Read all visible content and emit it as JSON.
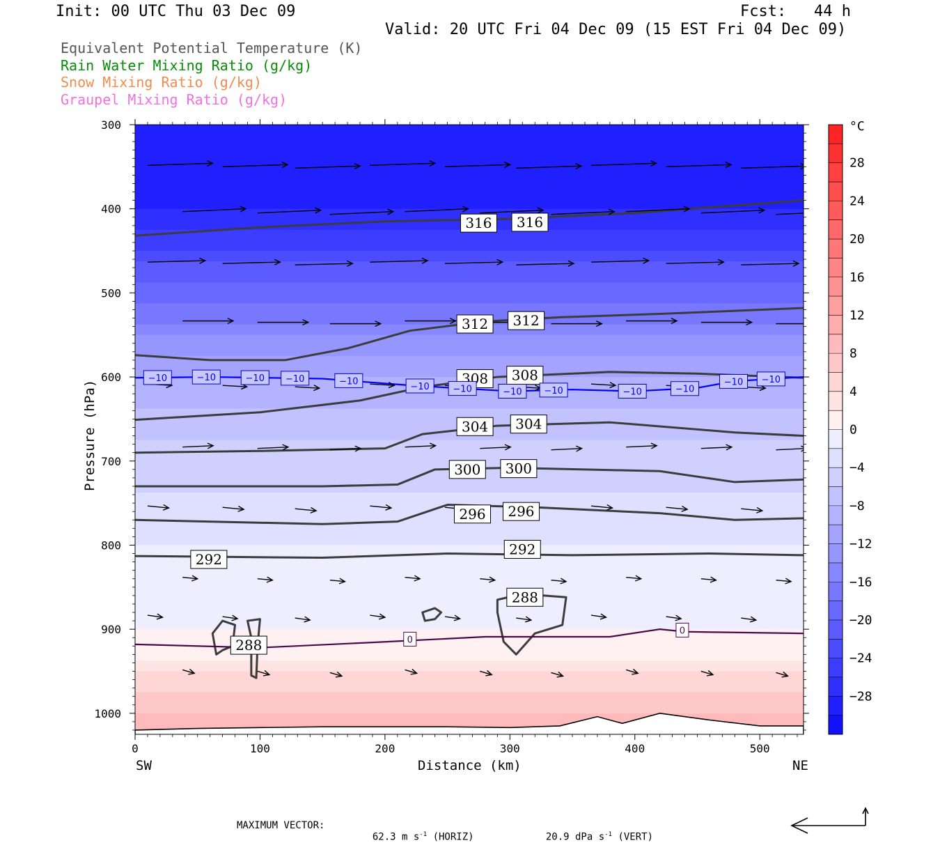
{
  "header": {
    "init": "Init: 00 UTC Thu 03 Dec 09",
    "fcst": "Fcst:   44 h",
    "valid": "Valid: 20 UTC Fri 04 Dec 09 (15 EST Fri 04 Dec 09)"
  },
  "legend": [
    {
      "label": "Equivalent Potential Temperature (K)",
      "color": "#555555"
    },
    {
      "label": "Rain Water Mixing Ratio (g/kg)",
      "color": "#0a8a0a"
    },
    {
      "label": "Snow Mixing Ratio (g/kg)",
      "color": "#f08c50"
    },
    {
      "label": "Graupel Mixing Ratio (g/kg)",
      "color": "#f070e6"
    }
  ],
  "chart_data": {
    "type": "heatmap",
    "xlabel": "Distance (km)",
    "ylabel": "Pressure (hPa)",
    "xlim": [
      0,
      535
    ],
    "ylim": [
      1025,
      300
    ],
    "y_scale": "linear, inverted",
    "x_ticks": [
      "0",
      "100",
      "200",
      "300",
      "400",
      "500"
    ],
    "y_ticks": [
      "300",
      "400",
      "500",
      "600",
      "700",
      "800",
      "900",
      "1000"
    ],
    "x_endpoints": {
      "left": "SW",
      "right": "NE"
    },
    "colorbar": {
      "unit": "°C",
      "labels": [
        "28",
        "24",
        "20",
        "16",
        "12",
        "8",
        "4",
        "0",
        "−4",
        "−8",
        "−12",
        "−16",
        "−20",
        "−24",
        "−28"
      ],
      "range": [
        -32,
        32
      ],
      "step": 2
    },
    "temperature_profile": {
      "pressure_hPa": [
        300,
        400,
        500,
        600,
        700,
        800,
        900,
        920,
        1000,
        1025
      ],
      "temperature_C": [
        -30,
        -28,
        -19,
        -10,
        -5,
        -2,
        0,
        1,
        8,
        9
      ]
    },
    "theta_e_contours": [
      {
        "level": "316",
        "points": [
          [
            0,
            432
          ],
          [
            100,
            422
          ],
          [
            200,
            415
          ],
          [
            300,
            412
          ],
          [
            400,
            405
          ],
          [
            535,
            390
          ]
        ]
      },
      {
        "level": "312",
        "points": [
          [
            0,
            574
          ],
          [
            60,
            580
          ],
          [
            120,
            580
          ],
          [
            170,
            566
          ],
          [
            220,
            545
          ],
          [
            280,
            534
          ],
          [
            340,
            529
          ],
          [
            420,
            525
          ],
          [
            535,
            518
          ]
        ]
      },
      {
        "level": "308",
        "points": [
          [
            0,
            651
          ],
          [
            100,
            642
          ],
          [
            180,
            628
          ],
          [
            230,
            612
          ],
          [
            290,
            600
          ],
          [
            380,
            594
          ],
          [
            450,
            596
          ],
          [
            535,
            601
          ]
        ]
      },
      {
        "level": "304",
        "points": [
          [
            0,
            690
          ],
          [
            100,
            688
          ],
          [
            200,
            685
          ],
          [
            230,
            668
          ],
          [
            290,
            658
          ],
          [
            380,
            654
          ],
          [
            480,
            666
          ],
          [
            535,
            670
          ]
        ]
      },
      {
        "level": "300",
        "points": [
          [
            0,
            730
          ],
          [
            150,
            730
          ],
          [
            210,
            728
          ],
          [
            240,
            710
          ],
          [
            300,
            708
          ],
          [
            420,
            712
          ],
          [
            480,
            725
          ],
          [
            535,
            722
          ]
        ]
      },
      {
        "level": "296",
        "points": [
          [
            0,
            770
          ],
          [
            150,
            775
          ],
          [
            210,
            772
          ],
          [
            250,
            752
          ],
          [
            320,
            755
          ],
          [
            420,
            762
          ],
          [
            480,
            770
          ],
          [
            535,
            768
          ]
        ]
      },
      {
        "level": "292",
        "points": [
          [
            0,
            813
          ],
          [
            150,
            815
          ],
          [
            250,
            810
          ],
          [
            350,
            812
          ],
          [
            460,
            810
          ],
          [
            535,
            812
          ]
        ]
      },
      {
        "level": "288",
        "points": [
          [
            290,
            865
          ],
          [
            310,
            858
          ],
          [
            345,
            862
          ],
          [
            342,
            895
          ],
          [
            320,
            905
          ],
          [
            305,
            930
          ],
          [
            295,
            915
          ],
          [
            290,
            880
          ]
        ]
      },
      {
        "level": "288",
        "points": [
          [
            62,
            905
          ],
          [
            70,
            890
          ],
          [
            80,
            895
          ],
          [
            78,
            920
          ],
          [
            70,
            925
          ],
          [
            65,
            930
          ]
        ]
      },
      {
        "level": "288",
        "points": [
          [
            90,
            890
          ],
          [
            100,
            888
          ],
          [
            98,
            920
          ],
          [
            97,
            958
          ],
          [
            93,
            955
          ],
          [
            93,
            910
          ]
        ]
      },
      {
        "level": "288",
        "points": [
          [
            230,
            880
          ],
          [
            240,
            875
          ],
          [
            245,
            880
          ],
          [
            240,
            888
          ],
          [
            232,
            890
          ]
        ]
      }
    ],
    "theta_e_labels": [
      {
        "text": "316",
        "km": 275,
        "hPa": 417
      },
      {
        "text": "316",
        "km": 316,
        "hPa": 416
      },
      {
        "text": "312",
        "km": 272,
        "hPa": 537
      },
      {
        "text": "312",
        "km": 313,
        "hPa": 533
      },
      {
        "text": "308",
        "km": 272,
        "hPa": 602
      },
      {
        "text": "308",
        "km": 312,
        "hPa": 598
      },
      {
        "text": "304",
        "km": 272,
        "hPa": 659
      },
      {
        "text": "304",
        "km": 315,
        "hPa": 656
      },
      {
        "text": "300",
        "km": 266,
        "hPa": 710
      },
      {
        "text": "300",
        "km": 307,
        "hPa": 709
      },
      {
        "text": "296",
        "km": 270,
        "hPa": 763
      },
      {
        "text": "296",
        "km": 309,
        "hPa": 760
      },
      {
        "text": "292",
        "km": 59,
        "hPa": 817
      },
      {
        "text": "292",
        "km": 310,
        "hPa": 805
      },
      {
        "text": "288",
        "km": 312,
        "hPa": 862
      },
      {
        "text": "288",
        "km": 91,
        "hPa": 919
      }
    ],
    "isotherm_minus10": {
      "level": "−10",
      "points": [
        [
          0,
          601
        ],
        [
          60,
          600
        ],
        [
          150,
          602
        ],
        [
          220,
          610
        ],
        [
          300,
          617
        ],
        [
          350,
          615
        ],
        [
          400,
          617
        ],
        [
          450,
          613
        ],
        [
          480,
          605
        ],
        [
          535,
          600
        ]
      ],
      "label_km": [
        18,
        57,
        96,
        128,
        171,
        228,
        262,
        302,
        335,
        398,
        440,
        479,
        509
      ]
    },
    "isotherm_zero": {
      "level": "0",
      "points": [
        [
          0,
          918
        ],
        [
          100,
          922
        ],
        [
          200,
          915
        ],
        [
          280,
          909
        ],
        [
          380,
          909
        ],
        [
          420,
          900
        ],
        [
          440,
          903
        ],
        [
          535,
          905
        ]
      ],
      "label_km": [
        220,
        438
      ]
    },
    "terrain_hPa": [
      [
        0,
        1020
      ],
      [
        50,
        1018
      ],
      [
        150,
        1016
      ],
      [
        250,
        1016
      ],
      [
        300,
        1017
      ],
      [
        340,
        1015
      ],
      [
        370,
        1004
      ],
      [
        390,
        1012
      ],
      [
        420,
        1000
      ],
      [
        460,
        1008
      ],
      [
        500,
        1015
      ],
      [
        535,
        1015
      ]
    ],
    "wind_vectors": [
      {
        "p": 350,
        "s": 0.95,
        "dy": -3
      },
      {
        "p": 405,
        "s": 0.92,
        "dy": -4
      },
      {
        "p": 465,
        "s": 0.83,
        "dy": -2
      },
      {
        "p": 535,
        "s": 0.72,
        "dy": 0
      },
      {
        "p": 610,
        "s": 0.3,
        "dy": 2
      },
      {
        "p": 685,
        "s": 0.4,
        "dy": -2
      },
      {
        "p": 755,
        "s": 0.25,
        "dy": 3
      },
      {
        "p": 840,
        "s": 0.15,
        "dy": 2
      },
      {
        "p": 885,
        "s": 0.15,
        "dy": 3
      },
      {
        "p": 950,
        "s": 0.1,
        "dy": 5
      }
    ]
  },
  "footer": {
    "max_vector_label": "MAXIMUM VECTOR:",
    "horiz_value": "62.3 m s",
    "horiz_unit": "(HORIZ)",
    "vert_value": "20.9 dPa s",
    "vert_unit": "(VERT)",
    "exponent": "-1"
  }
}
